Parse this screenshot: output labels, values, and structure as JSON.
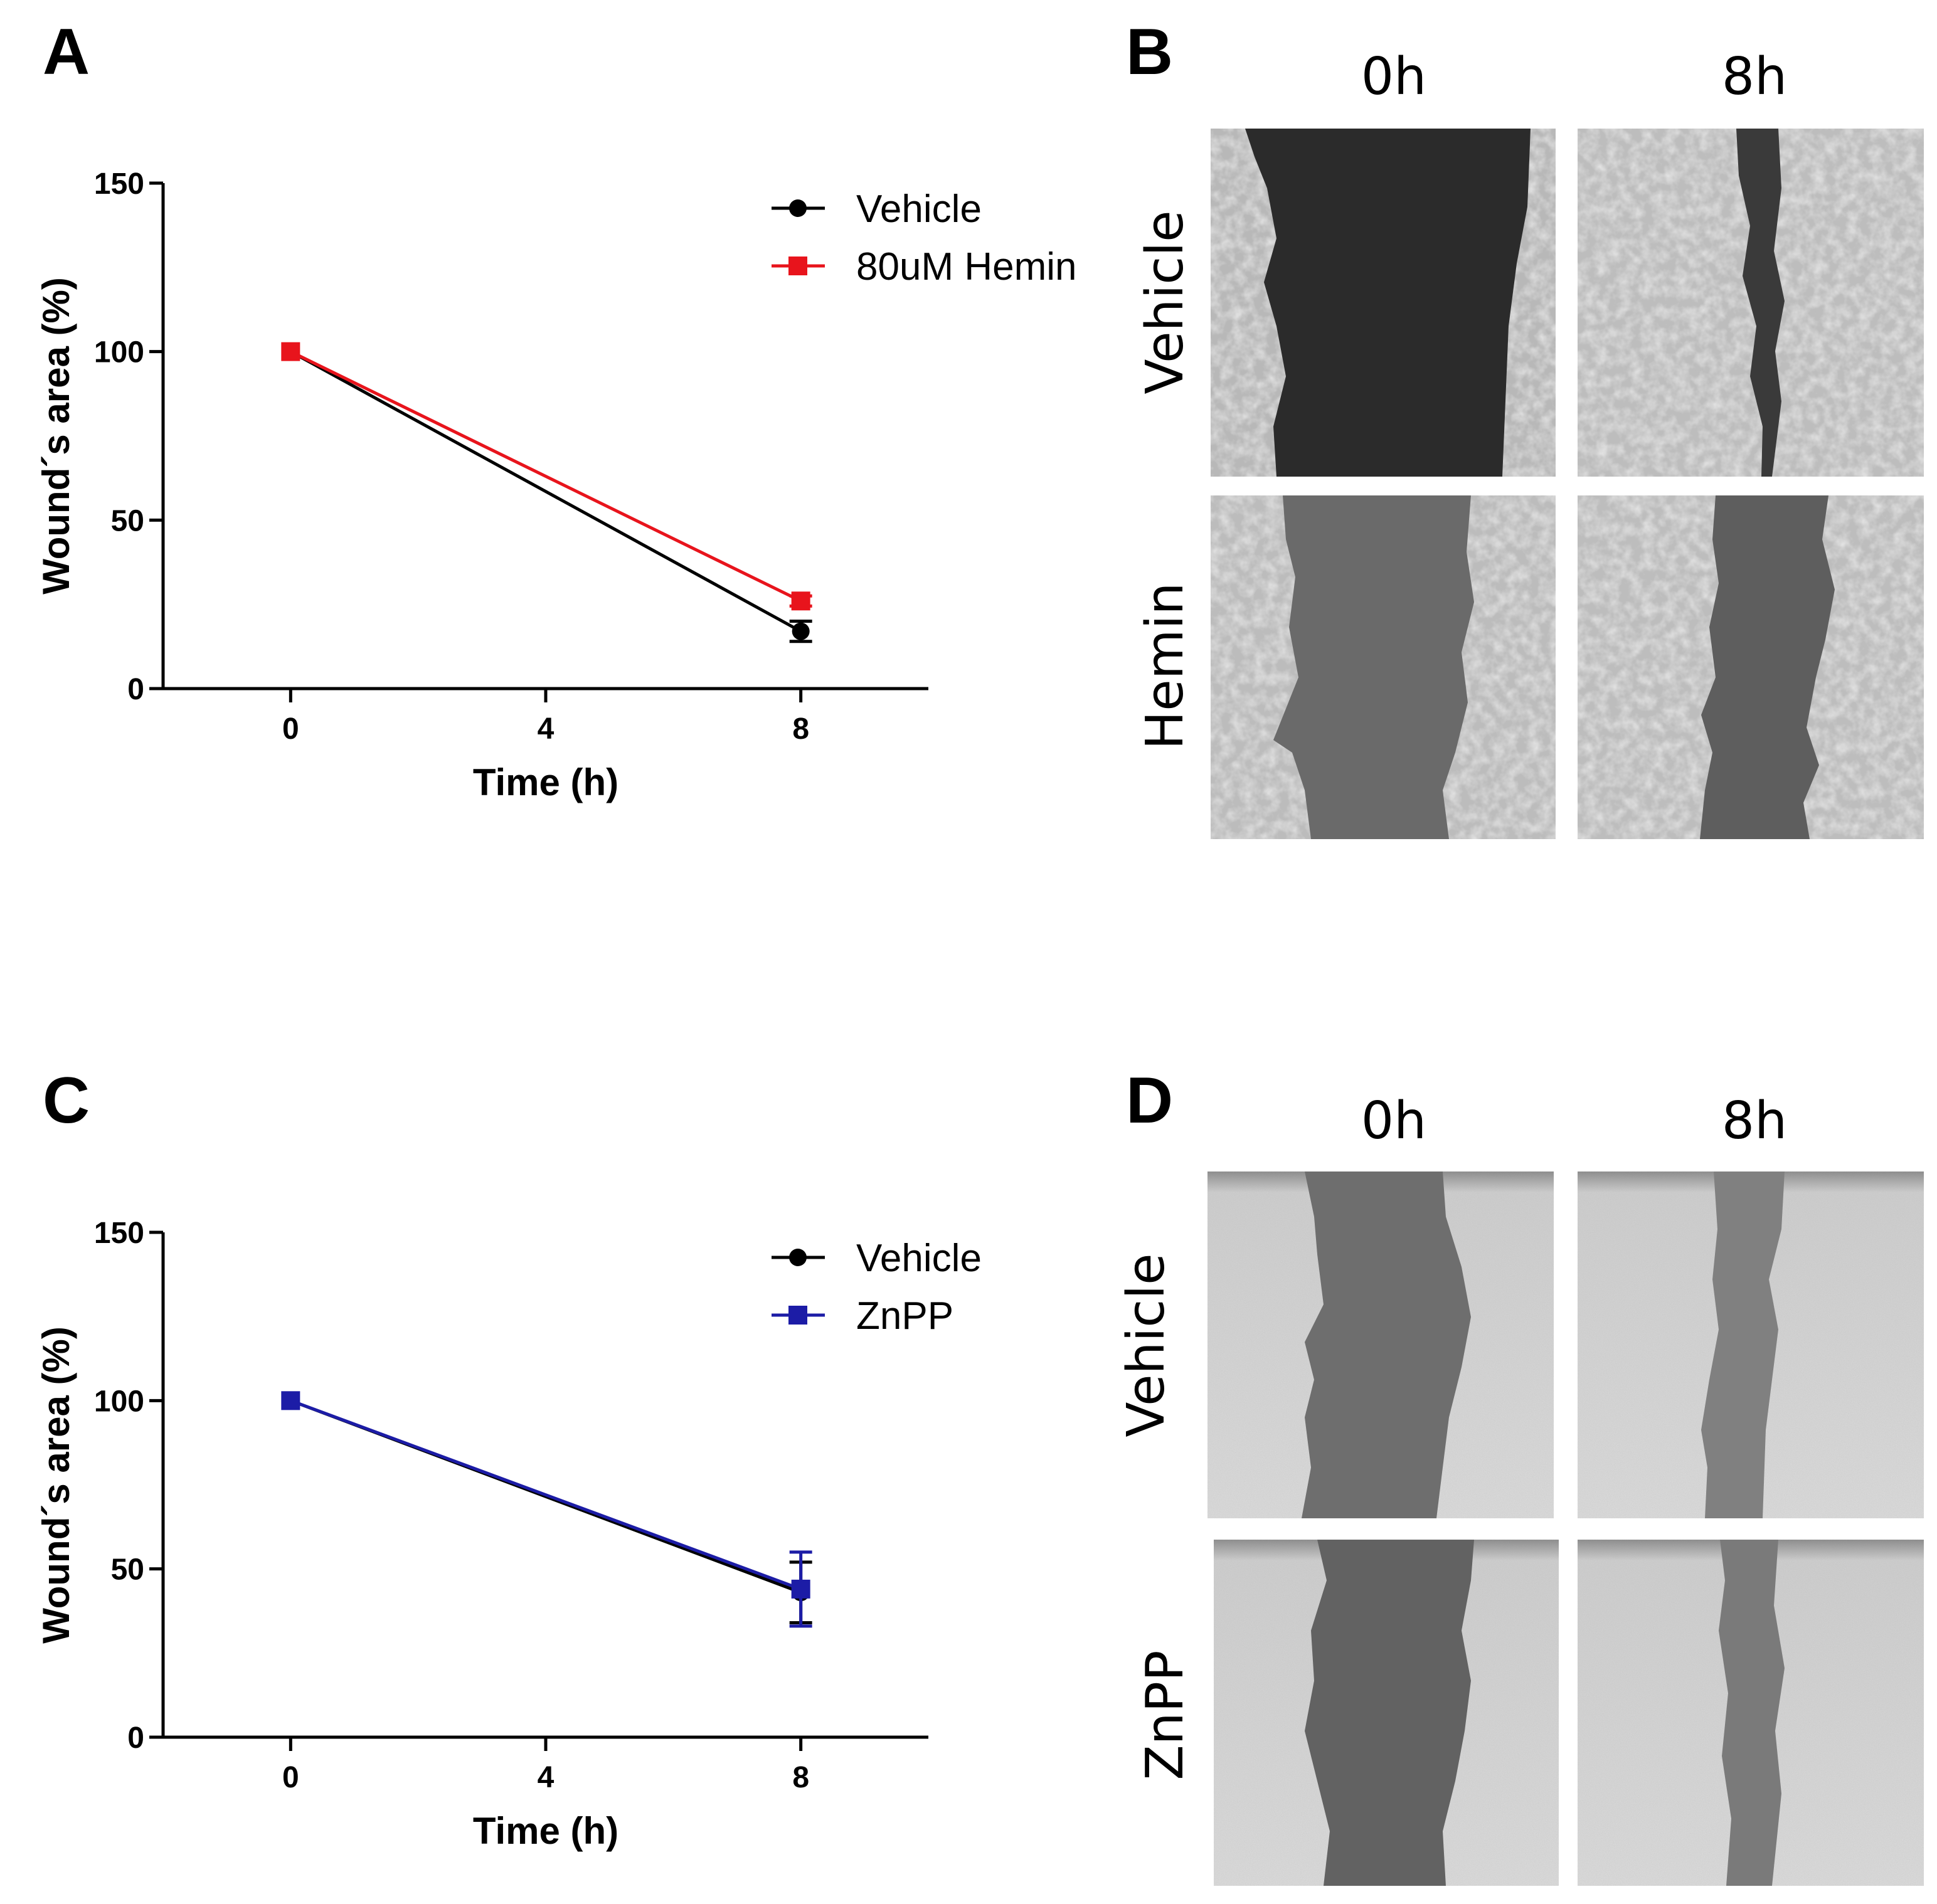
{
  "panels": {
    "A": "A",
    "B": "B",
    "C": "C",
    "D": "D"
  },
  "chart_data": [
    {
      "panel": "A",
      "type": "line",
      "title": "",
      "xlabel": "Time (h)",
      "ylabel": "Wound´s area (%)",
      "x": [
        0,
        8
      ],
      "xticks": [
        "0",
        "4",
        "8"
      ],
      "xtick_values": [
        0,
        4,
        8
      ],
      "yticks": [
        "0",
        "50",
        "100",
        "150"
      ],
      "ytick_values": [
        0,
        50,
        100,
        150
      ],
      "xlim": [
        -2,
        10
      ],
      "ylim": [
        0,
        150
      ],
      "legend_position": "top-right",
      "series": [
        {
          "name": "Vehicle",
          "values": [
            100,
            17
          ],
          "error": [
            0,
            3
          ],
          "color": "#000000",
          "marker": "circle"
        },
        {
          "name": "80uM Hemin",
          "values": [
            100,
            26
          ],
          "error": [
            0,
            1.5
          ],
          "color": "#e8141c",
          "marker": "square"
        }
      ]
    },
    {
      "panel": "C",
      "type": "line",
      "title": "",
      "xlabel": "Time (h)",
      "ylabel": "Wound´s area (%)",
      "x": [
        0,
        8
      ],
      "xticks": [
        "0",
        "4",
        "8"
      ],
      "xtick_values": [
        0,
        4,
        8
      ],
      "yticks": [
        "0",
        "50",
        "100",
        "150"
      ],
      "ytick_values": [
        0,
        50,
        100,
        150
      ],
      "xlim": [
        -2,
        10
      ],
      "ylim": [
        0,
        150
      ],
      "legend_position": "top-right",
      "series": [
        {
          "name": "Vehicle",
          "values": [
            100,
            43
          ],
          "error": [
            0,
            9
          ],
          "color": "#000000",
          "marker": "circle"
        },
        {
          "name": "ZnPP",
          "values": [
            100,
            44
          ],
          "error": [
            0,
            11
          ],
          "color": "#1c1ca6",
          "marker": "square"
        }
      ]
    }
  ],
  "image_panels": {
    "B": {
      "columns": [
        "0h",
        "8h"
      ],
      "rows": [
        "Vehicle",
        "Hemin"
      ]
    },
    "D": {
      "columns": [
        "0h",
        "8h"
      ],
      "rows": [
        "Vehicle",
        "ZnPP"
      ]
    }
  },
  "colors": {
    "vehicle": "#000000",
    "hemin": "#e8141c",
    "znpp": "#1c1ca6"
  }
}
